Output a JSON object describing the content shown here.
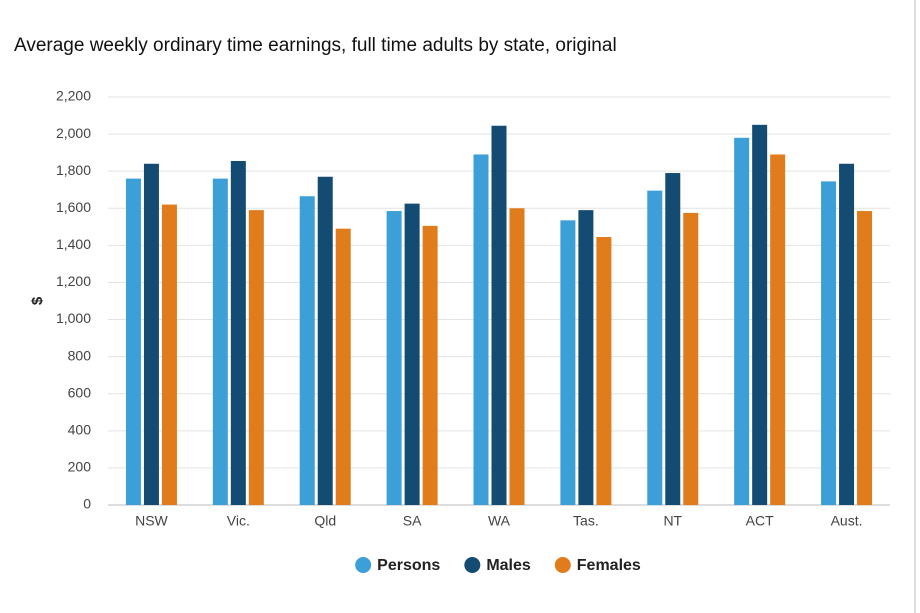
{
  "chart_data": {
    "type": "bar",
    "title": "Average weekly ordinary time earnings, full time adults by state, original",
    "y_label": "$",
    "categories": [
      "NSW",
      "Vic.",
      "Qld",
      "SA",
      "WA",
      "Tas.",
      "NT",
      "ACT",
      "Aust."
    ],
    "series": [
      {
        "name": "Persons",
        "color": "#3d9fd8",
        "values": [
          1760,
          1760,
          1665,
          1585,
          1890,
          1535,
          1695,
          1980,
          1745
        ]
      },
      {
        "name": "Males",
        "color": "#144b73",
        "values": [
          1840,
          1855,
          1770,
          1625,
          2045,
          1590,
          1790,
          2050,
          1840
        ]
      },
      {
        "name": "Females",
        "color": "#e07c1b",
        "values": [
          1620,
          1590,
          1490,
          1505,
          1600,
          1445,
          1575,
          1890,
          1585
        ]
      }
    ],
    "ylim": [
      0,
      2200
    ],
    "yticks": [
      0,
      200,
      400,
      600,
      800,
      {
        "value": 1000,
        "label": "1,000"
      },
      {
        "value": 1200,
        "label": "1,200"
      },
      {
        "value": 1400,
        "label": "1,400"
      },
      {
        "value": 1600,
        "label": "1,600"
      },
      {
        "value": 1800,
        "label": "1,800"
      },
      {
        "value": 2000,
        "label": "2,000"
      },
      {
        "value": 2200,
        "label": "2,200"
      }
    ],
    "grid": true
  }
}
